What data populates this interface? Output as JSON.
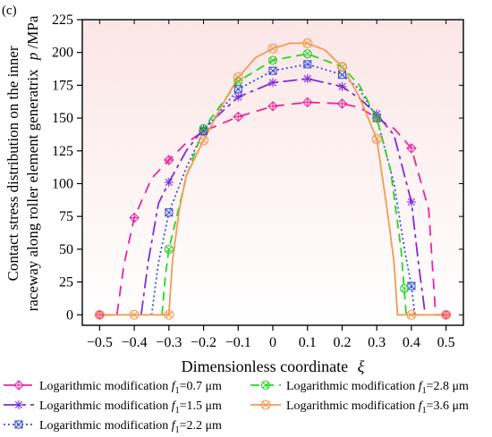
{
  "panel_label": "(c)",
  "legend": {
    "ncol": 2,
    "entries": [
      {
        "prefix": "Logarithmic modification ",
        "var": "f",
        "sub": "1",
        "suffix": "=0.7 μm"
      },
      {
        "prefix": "Logarithmic modification ",
        "var": "f",
        "sub": "1",
        "suffix": "=2.8 μm"
      },
      {
        "prefix": "Logarithmic modification ",
        "var": "f",
        "sub": "1",
        "suffix": "=1.5 μm"
      },
      {
        "prefix": "Logarithmic modification ",
        "var": "f",
        "sub": "1",
        "suffix": "=3.6 μm"
      },
      {
        "prefix": "Logarithmic modification ",
        "var": "f",
        "sub": "1",
        "suffix": "=2.2 μm"
      }
    ]
  },
  "colors": {
    "background_top": "#fbe6e6",
    "background_bottom": "#ffffff",
    "axis": "#000000"
  },
  "chart_data": {
    "type": "line",
    "xlabel": "Dimensionless coordinate",
    "xlabel_symbol": "ξ",
    "ylabel_line1": "Contact stress distribution on the inner",
    "ylabel_line2": "raceway along roller element generatrix",
    "ylabel_symbol": "p",
    "ylabel_unit": "/MPa",
    "xlim": [
      -0.55,
      0.55
    ],
    "ylim": [
      -8,
      225
    ],
    "xticks": [
      -0.5,
      -0.4,
      -0.3,
      -0.2,
      -0.1,
      0,
      0.1,
      0.2,
      0.3,
      0.4,
      0.5
    ],
    "xticklabels": [
      "−0.5",
      "−0.4",
      "−0.3",
      "−0.2",
      "−0.1",
      "0",
      "0.1",
      "0.2",
      "0.3",
      "0.4",
      "0.5"
    ],
    "yticks": [
      0,
      25,
      50,
      75,
      100,
      125,
      150,
      175,
      200,
      225
    ],
    "yticklabels": [
      "0",
      "25",
      "50",
      "75",
      "100",
      "125",
      "150",
      "175",
      "200",
      "225"
    ],
    "grid": false,
    "legend_position": "below",
    "series": [
      {
        "name": "Logarithmic modification f1=0.7 μm",
        "color": "#e8279c",
        "dash": "12 8",
        "marker": "diamond-cross",
        "points": [
          [
            -0.5,
            0
          ],
          [
            -0.45,
            0
          ],
          [
            -0.43,
            38
          ],
          [
            -0.4,
            74
          ],
          [
            -0.35,
            104
          ],
          [
            -0.3,
            118
          ],
          [
            -0.25,
            131
          ],
          [
            -0.2,
            140
          ],
          [
            -0.1,
            151
          ],
          [
            0,
            159
          ],
          [
            0.1,
            162
          ],
          [
            0.2,
            161
          ],
          [
            0.25,
            158
          ],
          [
            0.3,
            150
          ],
          [
            0.35,
            142
          ],
          [
            0.4,
            127
          ],
          [
            0.45,
            80
          ],
          [
            0.47,
            0
          ],
          [
            0.5,
            0
          ]
        ],
        "markers": [
          [
            -0.5,
            0
          ],
          [
            -0.4,
            74
          ],
          [
            -0.3,
            118
          ],
          [
            -0.2,
            140
          ],
          [
            -0.1,
            151
          ],
          [
            0,
            159
          ],
          [
            0.1,
            162
          ],
          [
            0.2,
            161
          ],
          [
            0.3,
            150
          ],
          [
            0.4,
            127
          ],
          [
            0.5,
            0
          ]
        ]
      },
      {
        "name": "Logarithmic modification f1=1.5 μm",
        "color": "#7b2fd6",
        "dash": "16 5 4 5",
        "marker": "star",
        "points": [
          [
            -0.38,
            0
          ],
          [
            -0.36,
            40
          ],
          [
            -0.33,
            85
          ],
          [
            -0.3,
            101
          ],
          [
            -0.25,
            125
          ],
          [
            -0.2,
            142
          ],
          [
            -0.1,
            166
          ],
          [
            0,
            177
          ],
          [
            0.1,
            180
          ],
          [
            0.2,
            174
          ],
          [
            0.25,
            165
          ],
          [
            0.3,
            153
          ],
          [
            0.35,
            137
          ],
          [
            0.4,
            86
          ],
          [
            0.42,
            40
          ],
          [
            0.44,
            0
          ]
        ],
        "markers": [
          [
            -0.3,
            101
          ],
          [
            -0.2,
            142
          ],
          [
            -0.1,
            166
          ],
          [
            0,
            177
          ],
          [
            0.1,
            180
          ],
          [
            0.2,
            174
          ],
          [
            0.3,
            153
          ],
          [
            0.4,
            86
          ]
        ]
      },
      {
        "name": "Logarithmic modification f1=2.2 μm",
        "color": "#3a4fe0",
        "dash": "2 3",
        "marker": "square-cross",
        "points": [
          [
            -0.35,
            0
          ],
          [
            -0.33,
            40
          ],
          [
            -0.3,
            78
          ],
          [
            -0.25,
            112
          ],
          [
            -0.2,
            140
          ],
          [
            -0.1,
            172
          ],
          [
            0,
            186
          ],
          [
            0.1,
            191
          ],
          [
            0.2,
            183
          ],
          [
            0.25,
            172
          ],
          [
            0.3,
            150
          ],
          [
            0.35,
            100
          ],
          [
            0.38,
            50
          ],
          [
            0.4,
            22
          ],
          [
            0.41,
            0
          ]
        ],
        "markers": [
          [
            -0.3,
            78
          ],
          [
            -0.2,
            140
          ],
          [
            -0.1,
            172
          ],
          [
            0,
            186
          ],
          [
            0.1,
            191
          ],
          [
            0.2,
            183
          ],
          [
            0.3,
            150
          ],
          [
            0.4,
            22
          ]
        ]
      },
      {
        "name": "Logarithmic modification f1=2.8 μm",
        "color": "#27d627",
        "dash": "10 6",
        "marker": "circle-cross",
        "points": [
          [
            -0.32,
            0
          ],
          [
            -0.31,
            30
          ],
          [
            -0.3,
            50
          ],
          [
            -0.25,
            105
          ],
          [
            -0.2,
            142
          ],
          [
            -0.1,
            178
          ],
          [
            0,
            194
          ],
          [
            0.1,
            199
          ],
          [
            0.2,
            189
          ],
          [
            0.25,
            175
          ],
          [
            0.3,
            150
          ],
          [
            0.34,
            110
          ],
          [
            0.37,
            50
          ],
          [
            0.385,
            0
          ]
        ],
        "markers": [
          [
            -0.3,
            50
          ],
          [
            -0.2,
            142
          ],
          [
            -0.1,
            178
          ],
          [
            0,
            194
          ],
          [
            0.1,
            199
          ],
          [
            0.2,
            189
          ],
          [
            0.3,
            150
          ],
          [
            0.38,
            20
          ]
        ]
      },
      {
        "name": "Logarithmic modification f1=3.6 μm",
        "color": "#f39b52",
        "dash": "",
        "marker": "circle-x",
        "points": [
          [
            -0.5,
            0
          ],
          [
            -0.3,
            0
          ],
          [
            -0.3,
            0
          ],
          [
            -0.29,
            40
          ],
          [
            -0.27,
            80
          ],
          [
            -0.25,
            106
          ],
          [
            -0.2,
            133
          ],
          [
            -0.15,
            158
          ],
          [
            -0.1,
            181
          ],
          [
            -0.05,
            196
          ],
          [
            0,
            203
          ],
          [
            0.05,
            207
          ],
          [
            0.1,
            207
          ],
          [
            0.15,
            202
          ],
          [
            0.2,
            189
          ],
          [
            0.25,
            166
          ],
          [
            0.3,
            134
          ],
          [
            0.33,
            80
          ],
          [
            0.35,
            40
          ],
          [
            0.36,
            0
          ],
          [
            0.5,
            0
          ]
        ],
        "markers": [
          [
            -0.5,
            0
          ],
          [
            -0.4,
            0
          ],
          [
            -0.3,
            0
          ],
          [
            -0.2,
            133
          ],
          [
            -0.1,
            181
          ],
          [
            0,
            203
          ],
          [
            0.1,
            207
          ],
          [
            0.2,
            189
          ],
          [
            0.3,
            134
          ],
          [
            0.4,
            0
          ],
          [
            0.5,
            0
          ]
        ]
      }
    ]
  }
}
